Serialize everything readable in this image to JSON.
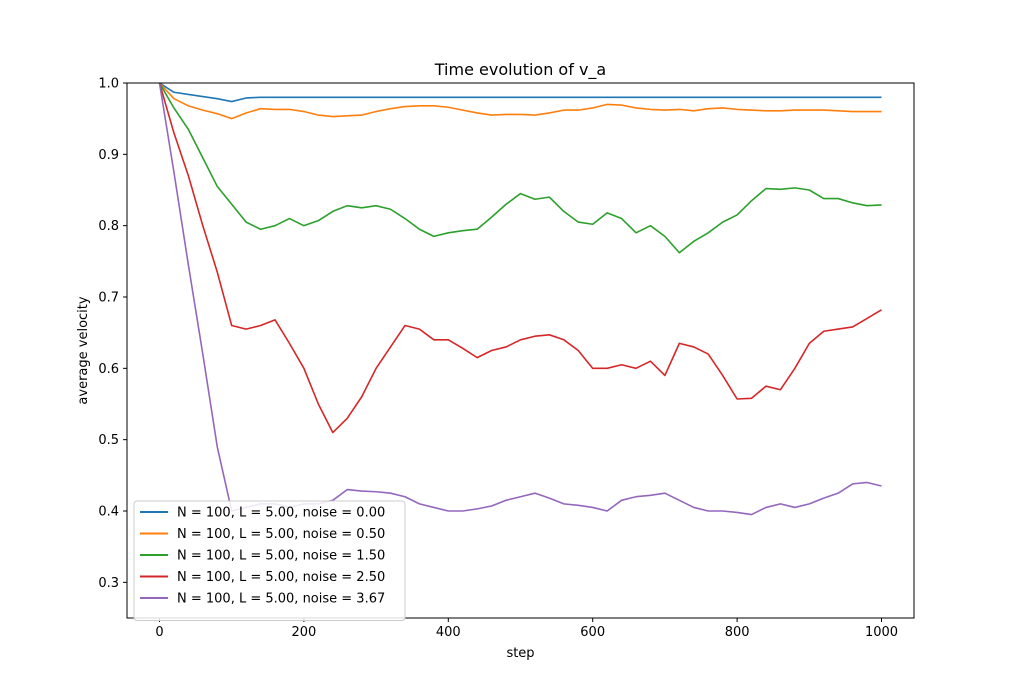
{
  "chart_data": {
    "type": "line",
    "title": "Time evolution of v_a",
    "xlabel": "step",
    "ylabel": "average velocity",
    "xlim": [
      -45,
      1045
    ],
    "ylim": [
      0.25,
      1.0
    ],
    "xticks": [
      0,
      200,
      400,
      600,
      800,
      1000
    ],
    "yticks": [
      0.3,
      0.4,
      0.5,
      0.6,
      0.7,
      0.8,
      0.9,
      1.0
    ],
    "xtick_labels": [
      "0",
      "200",
      "400",
      "600",
      "800",
      "1000"
    ],
    "ytick_labels": [
      "0.3",
      "0.4",
      "0.5",
      "0.6",
      "0.7",
      "0.8",
      "0.9",
      "1.0"
    ],
    "grid": false,
    "legend_position": "lower-left",
    "x": [
      0,
      20,
      40,
      60,
      80,
      100,
      120,
      140,
      160,
      180,
      200,
      220,
      240,
      260,
      280,
      300,
      320,
      340,
      360,
      380,
      400,
      420,
      440,
      460,
      480,
      500,
      520,
      540,
      560,
      580,
      600,
      620,
      640,
      660,
      680,
      700,
      720,
      740,
      760,
      780,
      800,
      820,
      840,
      860,
      880,
      900,
      920,
      940,
      960,
      980,
      1000
    ],
    "series": [
      {
        "name": "N = 100, L = 5.00, noise = 0.00",
        "color": "#1f77b4",
        "values": [
          1.0,
          0.987,
          0.984,
          0.981,
          0.978,
          0.974,
          0.979,
          0.98,
          0.98,
          0.98,
          0.98,
          0.98,
          0.98,
          0.98,
          0.98,
          0.98,
          0.98,
          0.98,
          0.98,
          0.98,
          0.98,
          0.98,
          0.98,
          0.98,
          0.98,
          0.98,
          0.98,
          0.98,
          0.98,
          0.98,
          0.98,
          0.98,
          0.98,
          0.98,
          0.98,
          0.98,
          0.98,
          0.98,
          0.98,
          0.98,
          0.98,
          0.98,
          0.98,
          0.98,
          0.98,
          0.98,
          0.98,
          0.98,
          0.98,
          0.98,
          0.98
        ]
      },
      {
        "name": "N = 100, L = 5.00, noise = 0.50",
        "color": "#ff7f0e",
        "values": [
          1.0,
          0.978,
          0.968,
          0.962,
          0.957,
          0.95,
          0.958,
          0.964,
          0.963,
          0.963,
          0.96,
          0.955,
          0.953,
          0.954,
          0.955,
          0.96,
          0.964,
          0.967,
          0.968,
          0.968,
          0.966,
          0.962,
          0.958,
          0.955,
          0.956,
          0.956,
          0.955,
          0.958,
          0.962,
          0.962,
          0.965,
          0.97,
          0.969,
          0.965,
          0.963,
          0.962,
          0.963,
          0.961,
          0.964,
          0.965,
          0.963,
          0.962,
          0.961,
          0.961,
          0.962,
          0.962,
          0.962,
          0.961,
          0.96,
          0.96,
          0.96
        ]
      },
      {
        "name": "N = 100, L = 5.00, noise = 1.50",
        "color": "#2ca02c",
        "values": [
          1.0,
          0.965,
          0.935,
          0.895,
          0.855,
          0.83,
          0.805,
          0.795,
          0.8,
          0.81,
          0.8,
          0.807,
          0.82,
          0.828,
          0.825,
          0.828,
          0.823,
          0.81,
          0.795,
          0.785,
          0.79,
          0.793,
          0.795,
          0.812,
          0.83,
          0.845,
          0.837,
          0.84,
          0.82,
          0.805,
          0.802,
          0.818,
          0.81,
          0.79,
          0.8,
          0.785,
          0.762,
          0.778,
          0.79,
          0.805,
          0.815,
          0.835,
          0.852,
          0.851,
          0.853,
          0.85,
          0.838,
          0.838,
          0.832,
          0.828,
          0.829
        ]
      },
      {
        "name": "N = 100, L = 5.00, noise = 2.50",
        "color": "#d62728",
        "values": [
          1.0,
          0.93,
          0.87,
          0.8,
          0.735,
          0.66,
          0.655,
          0.66,
          0.668,
          0.635,
          0.6,
          0.55,
          0.51,
          0.53,
          0.56,
          0.6,
          0.63,
          0.66,
          0.655,
          0.64,
          0.64,
          0.628,
          0.615,
          0.625,
          0.63,
          0.64,
          0.645,
          0.647,
          0.64,
          0.625,
          0.6,
          0.6,
          0.605,
          0.6,
          0.61,
          0.59,
          0.635,
          0.63,
          0.62,
          0.59,
          0.557,
          0.558,
          0.575,
          0.57,
          0.6,
          0.635,
          0.652,
          0.655,
          0.658,
          0.67,
          0.682
        ]
      },
      {
        "name": "N = 100, L = 5.00, noise = 3.67",
        "color": "#9467bd",
        "values": [
          1.0,
          0.875,
          0.745,
          0.62,
          0.49,
          0.4,
          0.405,
          0.41,
          0.41,
          0.405,
          0.41,
          0.41,
          0.415,
          0.43,
          0.428,
          0.427,
          0.425,
          0.42,
          0.41,
          0.405,
          0.4,
          0.4,
          0.403,
          0.407,
          0.415,
          0.42,
          0.425,
          0.418,
          0.41,
          0.408,
          0.405,
          0.4,
          0.415,
          0.42,
          0.422,
          0.425,
          0.415,
          0.405,
          0.4,
          0.4,
          0.398,
          0.395,
          0.405,
          0.41,
          0.405,
          0.41,
          0.418,
          0.425,
          0.438,
          0.44,
          0.435
        ]
      }
    ]
  }
}
